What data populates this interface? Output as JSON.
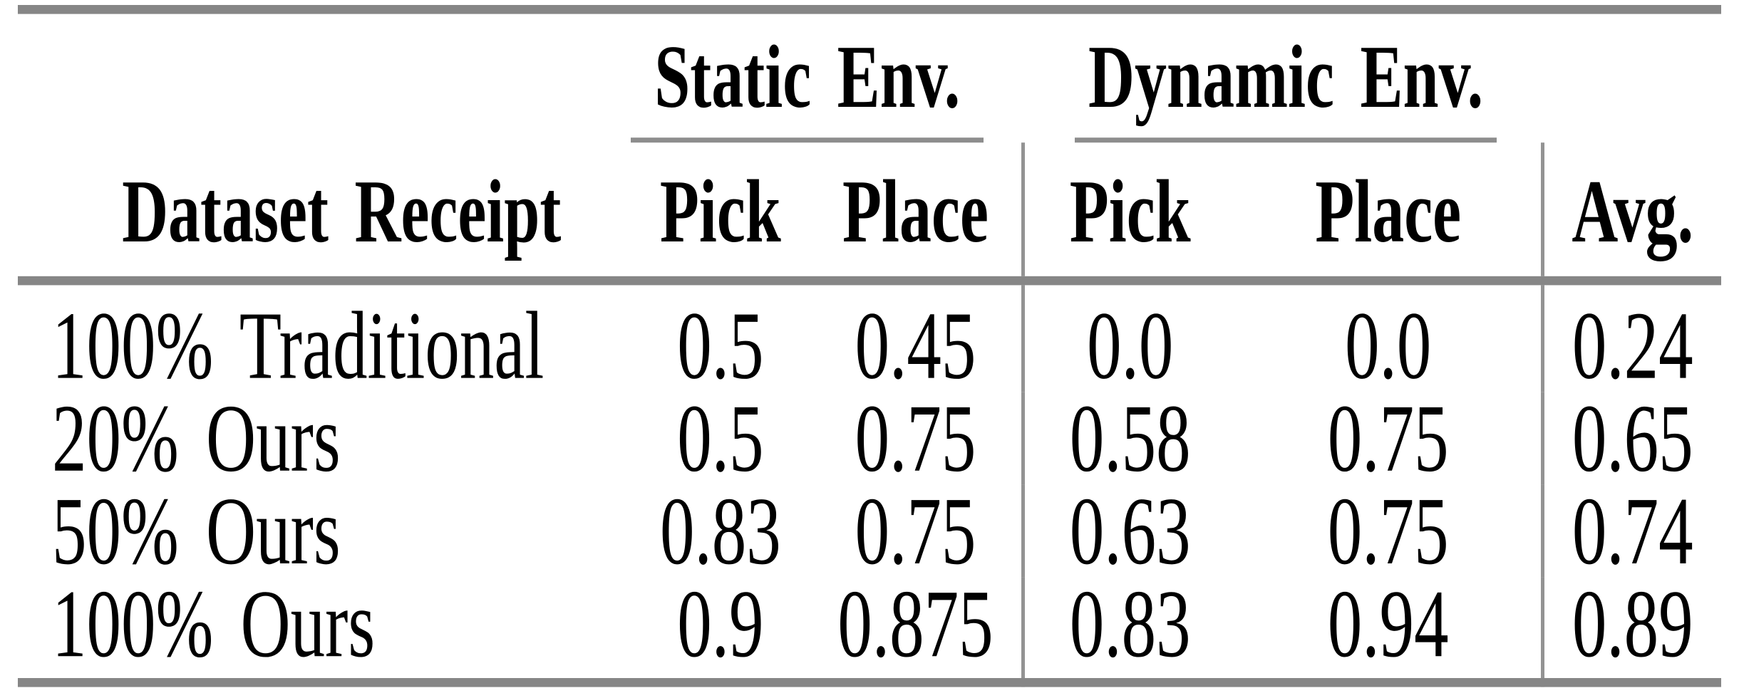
{
  "table": {
    "groups": [
      {
        "label": "Static Env."
      },
      {
        "label": "Dynamic Env."
      }
    ],
    "columns": [
      "Dataset Receipt",
      "Pick",
      "Place",
      "Pick",
      "Place",
      "Avg."
    ],
    "rows": [
      {
        "label": "100% Traditional",
        "values": [
          "0.5",
          "0.45",
          "0.0",
          "0.0",
          "0.24"
        ]
      },
      {
        "label": "20% Ours",
        "values": [
          "0.5",
          "0.75",
          "0.58",
          "0.75",
          "0.65"
        ]
      },
      {
        "label": "50% Ours",
        "values": [
          "0.83",
          "0.75",
          "0.63",
          "0.75",
          "0.74"
        ]
      },
      {
        "label": "100% Ours",
        "values": [
          "0.9",
          "0.875",
          "0.83",
          "0.94",
          "0.89"
        ]
      }
    ],
    "colors": {
      "rule_gray": "#868686",
      "cmidrule_gray": "#8d8d8d",
      "vertical_rule_gray": "#939393",
      "text": "#000000",
      "background": "#ffffff"
    }
  },
  "chart_data": {
    "type": "table",
    "title": "",
    "column_groups": [
      {
        "label": "Static Env.",
        "columns": [
          "Pick",
          "Place"
        ]
      },
      {
        "label": "Dynamic Env.",
        "columns": [
          "Pick",
          "Place"
        ]
      }
    ],
    "columns": [
      "Dataset Receipt",
      "Static Pick",
      "Static Place",
      "Dynamic Pick",
      "Dynamic Place",
      "Avg."
    ],
    "rows": [
      [
        "100% Traditional",
        0.5,
        0.45,
        0.0,
        0.0,
        0.24
      ],
      [
        "20% Ours",
        0.5,
        0.75,
        0.58,
        0.75,
        0.65
      ],
      [
        "50% Ours",
        0.83,
        0.75,
        0.63,
        0.75,
        0.74
      ],
      [
        "100% Ours",
        0.9,
        0.875,
        0.83,
        0.94,
        0.89
      ]
    ]
  }
}
